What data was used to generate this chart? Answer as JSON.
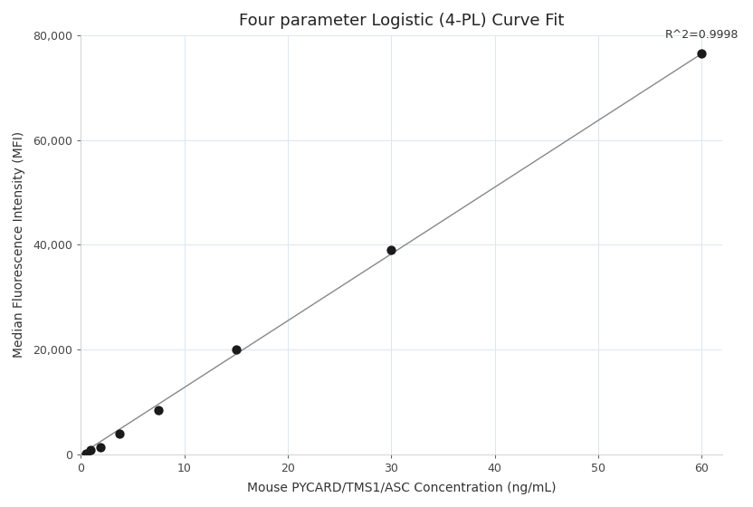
{
  "title": "Four parameter Logistic (4-PL) Curve Fit",
  "xlabel": "Mouse PYCARD/TMS1/ASC Concentration (ng/mL)",
  "ylabel": "Median Fluorescence Intensity (MFI)",
  "x_data": [
    0.47,
    0.94,
    1.875,
    3.75,
    7.5,
    15,
    30,
    60
  ],
  "y_data": [
    200,
    900,
    1400,
    4000,
    8500,
    20000,
    39000,
    76500
  ],
  "xlim": [
    0,
    62
  ],
  "ylim": [
    0,
    80000
  ],
  "xticks": [
    0,
    10,
    20,
    30,
    40,
    50,
    60
  ],
  "yticks": [
    0,
    20000,
    40000,
    60000,
    80000
  ],
  "ytick_labels": [
    "0",
    "20,000",
    "40,000",
    "60,000",
    "80,000"
  ],
  "r_squared_text": "R^2=0.9998",
  "point_color": "#1a1a1a",
  "line_color": "#888888",
  "grid_color": "#dce6f0",
  "background_color": "#ffffff",
  "title_fontsize": 13,
  "label_fontsize": 10,
  "tick_fontsize": 9,
  "annotation_fontsize": 9,
  "figsize": [
    8.32,
    5.6
  ],
  "dpi": 100
}
